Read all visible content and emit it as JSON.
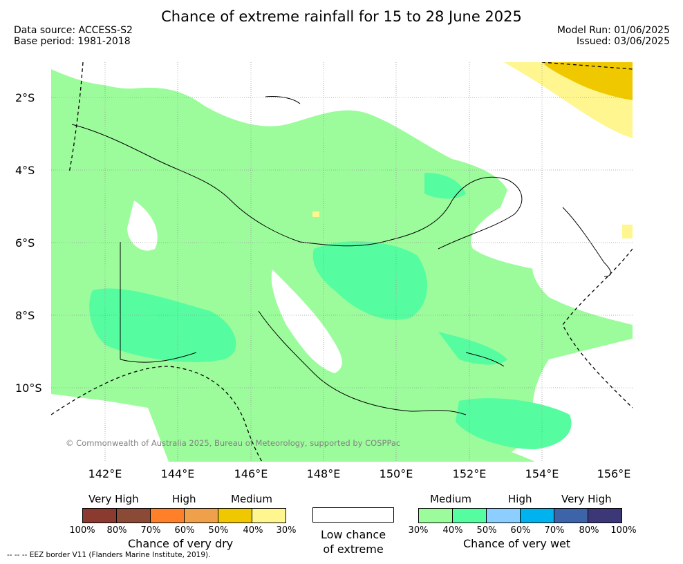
{
  "title": "Chance of extreme rainfall for 15 to 28 June 2025",
  "data_source": "Data source: ACCESS-S2",
  "base_period": "Base period: 1981-2018",
  "model_run": "Model Run: 01/06/2025",
  "issued": "Issued: 03/06/2025",
  "lat_labels": [
    "2°S",
    "4°S",
    "6°S",
    "8°S",
    "10°S"
  ],
  "lon_labels": [
    "142°E",
    "144°E",
    "146°E",
    "148°E",
    "150°E",
    "152°E",
    "154°E",
    "156°E"
  ],
  "copyright": "© Commonwealth of Australia 2025, Bureau of Meteorology, supported by COSPPac",
  "eez_note": "--  --  -- EEZ border V11 (Flanders Marine Institute, 2019).",
  "legend_dry": {
    "categories": [
      "Very High",
      "High",
      "Medium"
    ],
    "colors": [
      "#8b3a2f",
      "#8b4a35",
      "#ff8028",
      "#eea04a",
      "#f0c800",
      "#fff68f"
    ],
    "ticks": [
      "100%",
      "80%",
      "70%",
      "60%",
      "50%",
      "40%",
      "30%"
    ],
    "caption": "Chance of very dry"
  },
  "legend_low": {
    "line1": "Low chance",
    "line2": "of extreme"
  },
  "legend_wet": {
    "categories": [
      "Medium",
      "High",
      "Very High"
    ],
    "colors": [
      "#9cfc9c",
      "#56fca0",
      "#8ccfff",
      "#00b2ee",
      "#3d64a8",
      "#3c3878"
    ],
    "ticks": [
      "30%",
      "40%",
      "50%",
      "60%",
      "70%",
      "80%",
      "100%"
    ],
    "caption": "Chance of very wet"
  }
}
